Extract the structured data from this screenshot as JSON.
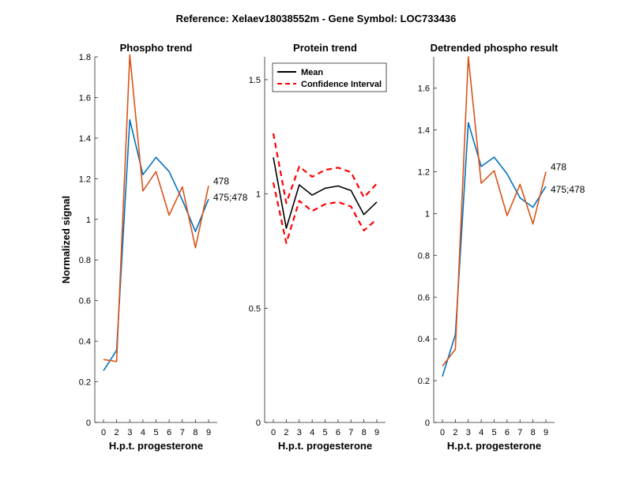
{
  "suptitle": "Reference:  Xelaev18038552m - Gene Symbol:  LOC733436",
  "colors": {
    "blue": "#0072BD",
    "orange": "#D95319",
    "black": "#000000",
    "red": "#FF0000"
  },
  "chart_data": [
    {
      "type": "line",
      "title": "Phospho trend",
      "xlabel": "H.p.t. progesterone",
      "ylabel": "Normalized signal",
      "categories": [
        "0",
        "2",
        "3",
        "4",
        "5",
        "6",
        "7",
        "8",
        "9"
      ],
      "ylim": [
        0,
        1.8
      ],
      "yticks": [
        "0",
        "0.2",
        "0.4",
        "0.6",
        "0.8",
        "1",
        "1.2",
        "1.4",
        "1.6",
        "1.8"
      ],
      "series": [
        {
          "name": "475;478",
          "color": "blue",
          "values": [
            0.255,
            0.355,
            1.49,
            1.22,
            1.305,
            1.235,
            1.095,
            0.94,
            1.1
          ]
        },
        {
          "name": "478",
          "color": "orange",
          "values": [
            0.31,
            0.3,
            1.81,
            1.14,
            1.235,
            1.02,
            1.16,
            0.86,
            1.165
          ]
        }
      ],
      "end_labels": [
        "478",
        "475;478"
      ]
    },
    {
      "type": "line",
      "title": "Protein trend",
      "xlabel": "H.p.t. progesterone",
      "ylabel": "",
      "categories": [
        "0",
        "2",
        "3",
        "4",
        "5",
        "6",
        "7",
        "8",
        "9"
      ],
      "ylim": [
        0,
        1.6
      ],
      "yticks": [
        "0",
        "0.5",
        "1",
        "1.5"
      ],
      "series": [
        {
          "name": "Mean",
          "color": "black",
          "style": "solid",
          "values": [
            1.16,
            0.85,
            1.04,
            0.995,
            1.025,
            1.035,
            1.015,
            0.91,
            0.965
          ]
        },
        {
          "name": "Confidence Interval",
          "color": "red",
          "style": "dashed",
          "values": [
            1.265,
            0.96,
            1.12,
            1.075,
            1.105,
            1.115,
            1.095,
            0.985,
            1.045
          ]
        },
        {
          "name": "Confidence Interval",
          "color": "red",
          "style": "dashed",
          "values": [
            1.05,
            0.785,
            0.97,
            0.925,
            0.955,
            0.965,
            0.945,
            0.84,
            0.89
          ]
        }
      ],
      "legend": {
        "position": "top-left",
        "entries": [
          {
            "label": "Mean",
            "color": "black",
            "style": "solid"
          },
          {
            "label": "Confidence Interval",
            "color": "red",
            "style": "dashed"
          }
        ]
      }
    },
    {
      "type": "line",
      "title": "Detrended phospho result",
      "xlabel": "H.p.t. progesterone",
      "ylabel": "",
      "categories": [
        "0",
        "2",
        "3",
        "4",
        "5",
        "6",
        "7",
        "8",
        "9"
      ],
      "ylim": [
        0,
        1.75
      ],
      "yticks": [
        "0",
        "0.2",
        "0.4",
        "0.6",
        "0.8",
        "1",
        "1.2",
        "1.4",
        "1.6"
      ],
      "series": [
        {
          "name": "475;478",
          "color": "blue",
          "values": [
            0.22,
            0.42,
            1.435,
            1.225,
            1.27,
            1.19,
            1.075,
            1.03,
            1.13
          ]
        },
        {
          "name": "478",
          "color": "orange",
          "values": [
            0.27,
            0.35,
            1.75,
            1.145,
            1.205,
            0.99,
            1.14,
            0.95,
            1.2
          ]
        }
      ],
      "end_labels": [
        "478",
        "475;478"
      ]
    }
  ]
}
